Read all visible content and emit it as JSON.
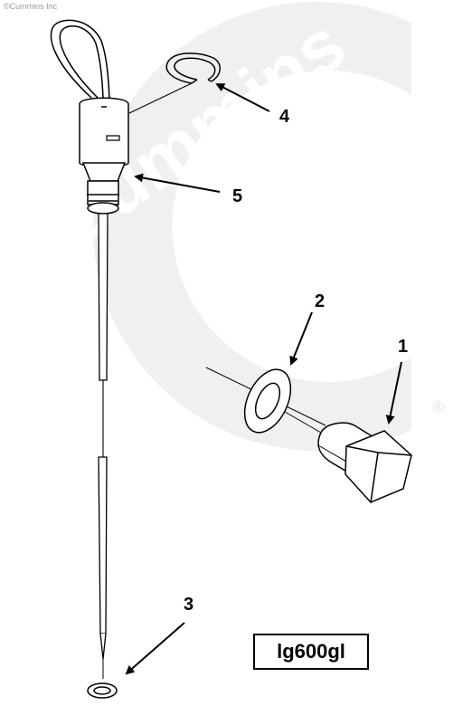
{
  "watermark": {
    "copyright": "©Cummins Inc",
    "brand_text": "Cummins",
    "registered": "®"
  },
  "callouts": {
    "c1": "1",
    "c2": "2",
    "c3": "3",
    "c4": "4",
    "c5": "5"
  },
  "figure_code": "lg600gl",
  "colors": {
    "line": "#000000",
    "watermark": "#efefef",
    "background": "#ffffff"
  }
}
